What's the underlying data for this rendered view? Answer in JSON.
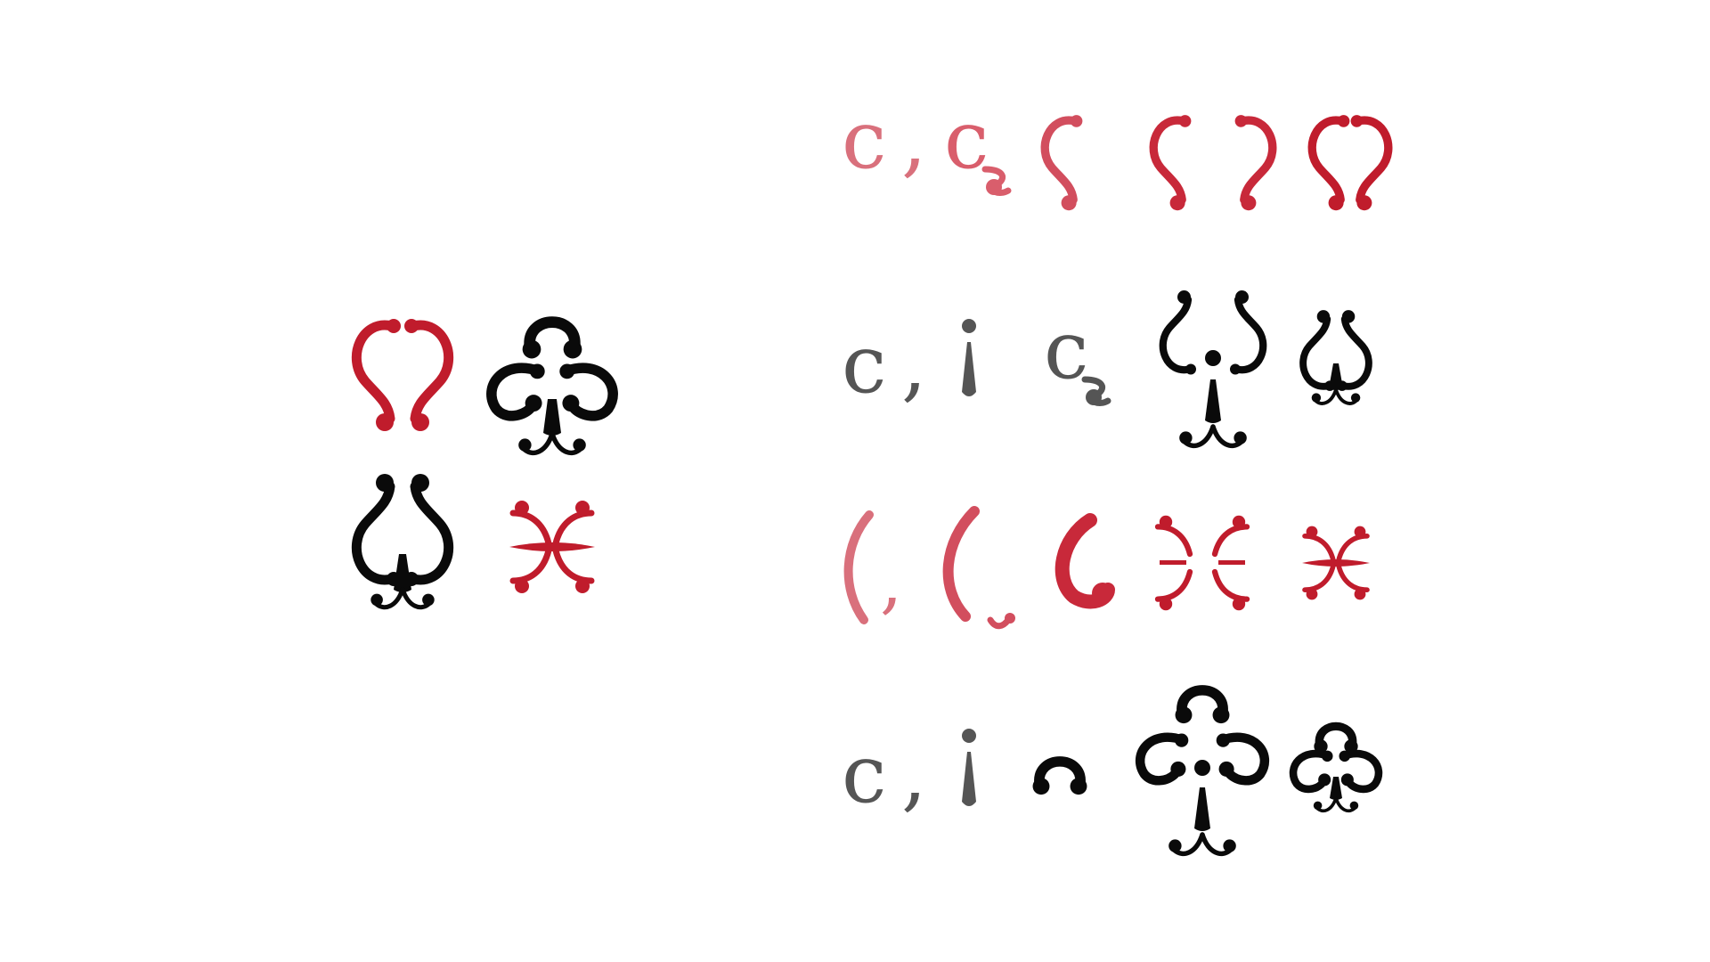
{
  "palette": {
    "red": "#c01c2c",
    "pink": "#d9707c",
    "rose": "#cf4a5a",
    "black": "#0a0a0a",
    "gray": "#555555",
    "background": "#ffffff"
  },
  "left_panel": {
    "symbols": [
      "heart",
      "club",
      "spade",
      "diamond"
    ]
  },
  "right_panel": {
    "rows": [
      {
        "suit": "heart",
        "steps": [
          "c , (separate)",
          "c with tail",
          "single curl",
          "mirrored pair",
          "heart"
        ]
      },
      {
        "suit": "spade",
        "steps": [
          "c , i",
          "c with tail",
          "exploded spade",
          "spade"
        ]
      },
      {
        "suit": "diamond",
        "steps": [
          "( ,",
          "( , spaced",
          "bowl curl",
          "four curls",
          "diamond"
        ]
      },
      {
        "suit": "club",
        "steps": [
          "c , i",
          "arch",
          "exploded club",
          "club"
        ]
      }
    ],
    "row_glyphs": {
      "c": "c",
      "comma": ",",
      "paren": "("
    }
  }
}
